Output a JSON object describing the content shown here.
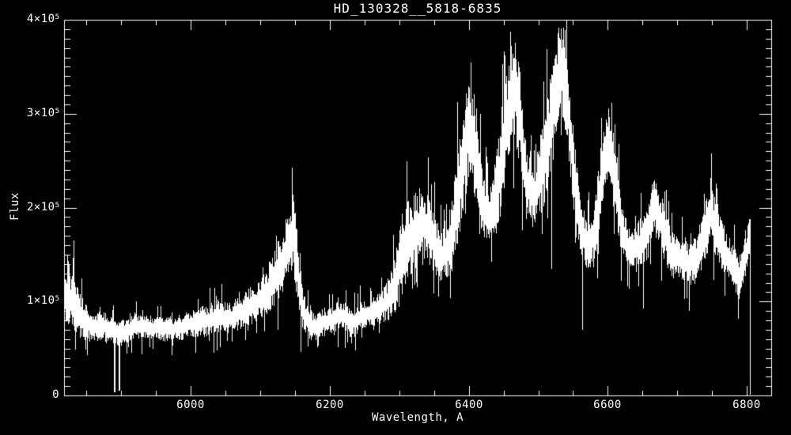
{
  "window": {
    "background": "#000000",
    "foreground": "#ffffff"
  },
  "chart_data": {
    "type": "line",
    "title": "HD_130328__5818-6835",
    "xlabel": "Wavelength, A",
    "ylabel": "Flux",
    "line_color": "#ffffff",
    "axis_color": "#ffffff",
    "grid": false,
    "xlim": [
      5818,
      6835
    ],
    "ylim": [
      0,
      400000
    ],
    "x_major_ticks": [
      6000,
      6200,
      6400,
      6600,
      6800
    ],
    "x_minor_step": 50,
    "y_major_ticks": [
      {
        "value": 0,
        "base": "0",
        "exp": ""
      },
      {
        "value": 100000,
        "base": "1×10",
        "exp": "5"
      },
      {
        "value": 200000,
        "base": "2×10",
        "exp": "5"
      },
      {
        "value": 300000,
        "base": "3×10",
        "exp": "5"
      },
      {
        "value": 400000,
        "base": "4×10",
        "exp": "5"
      }
    ],
    "y_minor_step": 10000,
    "data_end_wavelength": 6804,
    "noise_seed": 42,
    "envelope_points_comment": "[wavelength_A, mean_flux, noise_half_band] read from plot",
    "envelope_points": [
      [
        5818,
        105000,
        28000
      ],
      [
        5830,
        100000,
        30000
      ],
      [
        5845,
        80000,
        22000
      ],
      [
        5860,
        72000,
        16000
      ],
      [
        5875,
        74000,
        16000
      ],
      [
        5890,
        66000,
        14000
      ],
      [
        5905,
        68000,
        14000
      ],
      [
        5920,
        73000,
        14000
      ],
      [
        5935,
        74000,
        14000
      ],
      [
        5950,
        71000,
        13000
      ],
      [
        5965,
        70000,
        13000
      ],
      [
        5980,
        72000,
        14000
      ],
      [
        5995,
        75000,
        15000
      ],
      [
        6010,
        78000,
        16000
      ],
      [
        6025,
        80000,
        17000
      ],
      [
        6040,
        85000,
        18000
      ],
      [
        6055,
        82000,
        17000
      ],
      [
        6070,
        88000,
        18000
      ],
      [
        6085,
        95000,
        20000
      ],
      [
        6100,
        102000,
        22000
      ],
      [
        6110,
        110000,
        25000
      ],
      [
        6120,
        125000,
        30000
      ],
      [
        6130,
        140000,
        33000
      ],
      [
        6140,
        160000,
        38000
      ],
      [
        6147,
        175000,
        45000
      ],
      [
        6153,
        135000,
        40000
      ],
      [
        6160,
        95000,
        25000
      ],
      [
        6170,
        74000,
        16000
      ],
      [
        6180,
        73000,
        15000
      ],
      [
        6190,
        78000,
        15000
      ],
      [
        6200,
        80000,
        15000
      ],
      [
        6210,
        84000,
        16000
      ],
      [
        6220,
        86000,
        16000
      ],
      [
        6230,
        76000,
        15000
      ],
      [
        6240,
        82000,
        16000
      ],
      [
        6250,
        87000,
        16000
      ],
      [
        6260,
        88000,
        16000
      ],
      [
        6270,
        92000,
        17000
      ],
      [
        6280,
        98000,
        20000
      ],
      [
        6290,
        110000,
        30000
      ],
      [
        6300,
        140000,
        45000
      ],
      [
        6310,
        160000,
        45000
      ],
      [
        6320,
        172000,
        42000
      ],
      [
        6333,
        185000,
        40000
      ],
      [
        6345,
        170000,
        35000
      ],
      [
        6360,
        145000,
        28000
      ],
      [
        6375,
        170000,
        40000
      ],
      [
        6390,
        240000,
        55000
      ],
      [
        6400,
        285000,
        50000
      ],
      [
        6408,
        270000,
        50000
      ],
      [
        6420,
        200000,
        35000
      ],
      [
        6430,
        190000,
        32000
      ],
      [
        6445,
        240000,
        50000
      ],
      [
        6458,
        310000,
        55000
      ],
      [
        6465,
        330000,
        55000
      ],
      [
        6472,
        300000,
        55000
      ],
      [
        6483,
        225000,
        35000
      ],
      [
        6495,
        215000,
        32000
      ],
      [
        6508,
        250000,
        50000
      ],
      [
        6520,
        300000,
        55000
      ],
      [
        6532,
        355000,
        50000
      ],
      [
        6540,
        330000,
        55000
      ],
      [
        6550,
        240000,
        45000
      ],
      [
        6560,
        180000,
        30000
      ],
      [
        6570,
        160000,
        28000
      ],
      [
        6580,
        170000,
        30000
      ],
      [
        6590,
        230000,
        40000
      ],
      [
        6600,
        270000,
        40000
      ],
      [
        6610,
        230000,
        40000
      ],
      [
        6620,
        175000,
        30000
      ],
      [
        6632,
        152000,
        25000
      ],
      [
        6645,
        160000,
        28000
      ],
      [
        6655,
        170000,
        30000
      ],
      [
        6667,
        205000,
        35000
      ],
      [
        6680,
        175000,
        30000
      ],
      [
        6692,
        150000,
        25000
      ],
      [
        6705,
        145000,
        22000
      ],
      [
        6718,
        142000,
        22000
      ],
      [
        6730,
        150000,
        25000
      ],
      [
        6740,
        180000,
        35000
      ],
      [
        6748,
        195000,
        35000
      ],
      [
        6758,
        170000,
        30000
      ],
      [
        6770,
        150000,
        25000
      ],
      [
        6780,
        138000,
        22000
      ],
      [
        6788,
        125000,
        25000
      ],
      [
        6796,
        145000,
        28000
      ],
      [
        6804,
        165000,
        25000
      ]
    ],
    "absorption_lines_comment": "[wavelength_A, flux_at_line_bottom] deep narrow dips",
    "absorption_lines": [
      [
        5890,
        3000
      ],
      [
        5896,
        5000
      ],
      [
        6125,
        70000
      ],
      [
        6168,
        52000
      ],
      [
        6237,
        48000
      ],
      [
        6443,
        185000
      ],
      [
        6505,
        172000
      ],
      [
        6519,
        135000
      ],
      [
        6563,
        70000
      ],
      [
        6585,
        125000
      ],
      [
        6651,
        93000
      ],
      [
        6717,
        90000
      ]
    ]
  }
}
